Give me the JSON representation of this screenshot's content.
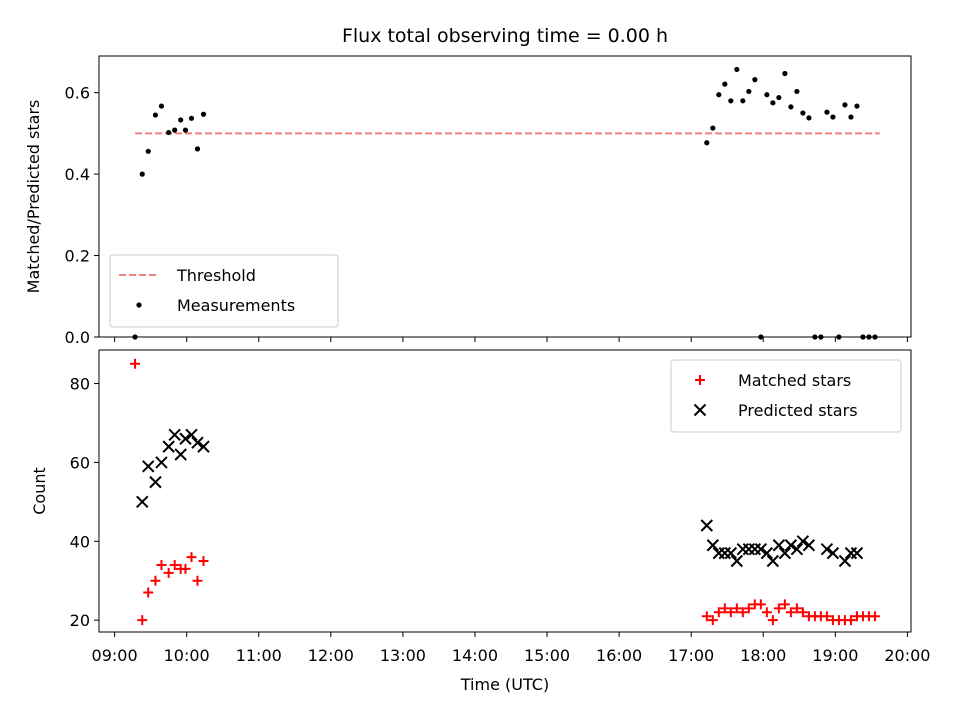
{
  "chart_data": [
    {
      "type": "scatter",
      "title": "Flux total observing time = 0.00 h",
      "xlabel": "",
      "ylabel": "Matched/Predicted stars",
      "xlim": [
        "08:47",
        "20:03"
      ],
      "ylim": [
        0,
        0.69
      ],
      "yticks": [
        0.0,
        0.2,
        0.4,
        0.6
      ],
      "ytick_labels": [
        "0.0",
        "0.2",
        "0.4",
        "0.6"
      ],
      "xtick_labels_shown": false,
      "legend_position": "lower-left",
      "threshold": {
        "name": "Threshold",
        "value": 0.5,
        "x_range": [
          "09:17",
          "19:37"
        ],
        "color": "#f08080",
        "style": "dashed"
      },
      "series": [
        {
          "name": "Measurements",
          "color": "#000000",
          "marker": "dot",
          "points": [
            [
              "09:17",
              0.0
            ],
            [
              "09:23",
              0.4
            ],
            [
              "09:28",
              0.456
            ],
            [
              "09:34",
              0.545
            ],
            [
              "09:39",
              0.567
            ],
            [
              "09:45",
              0.502
            ],
            [
              "09:50",
              0.508
            ],
            [
              "09:55",
              0.533
            ],
            [
              "09:59",
              0.508
            ],
            [
              "10:04",
              0.537
            ],
            [
              "10:09",
              0.462
            ],
            [
              "10:14",
              0.547
            ],
            [
              "17:13",
              0.477
            ],
            [
              "17:18",
              0.513
            ],
            [
              "17:23",
              0.595
            ],
            [
              "17:28",
              0.621
            ],
            [
              "17:33",
              0.58
            ],
            [
              "17:38",
              0.657
            ],
            [
              "17:43",
              0.58
            ],
            [
              "17:48",
              0.603
            ],
            [
              "17:53",
              0.632
            ],
            [
              "17:58",
              0.0
            ],
            [
              "18:03",
              0.595
            ],
            [
              "18:08",
              0.575
            ],
            [
              "18:13",
              0.588
            ],
            [
              "18:18",
              0.647
            ],
            [
              "18:23",
              0.565
            ],
            [
              "18:28",
              0.603
            ],
            [
              "18:33",
              0.55
            ],
            [
              "18:38",
              0.538
            ],
            [
              "18:43",
              0.0
            ],
            [
              "18:48",
              0.0
            ],
            [
              "18:53",
              0.552
            ],
            [
              "18:58",
              0.54
            ],
            [
              "19:03",
              0.0
            ],
            [
              "19:08",
              0.57
            ],
            [
              "19:13",
              0.54
            ],
            [
              "19:18",
              0.567
            ],
            [
              "19:23",
              0.0
            ],
            [
              "19:28",
              0.0
            ],
            [
              "19:33",
              0.0
            ]
          ]
        }
      ]
    },
    {
      "type": "scatter",
      "title": "",
      "xlabel": "Time (UTC)",
      "ylabel": "Count",
      "xlim": [
        "08:47",
        "20:03"
      ],
      "ylim": [
        17,
        88.5
      ],
      "yticks": [
        20,
        40,
        60,
        80
      ],
      "ytick_labels": [
        "20",
        "40",
        "60",
        "80"
      ],
      "xticks": [
        "09:00",
        "10:00",
        "11:00",
        "12:00",
        "13:00",
        "14:00",
        "15:00",
        "16:00",
        "17:00",
        "18:00",
        "19:00",
        "20:00"
      ],
      "xtick_labels": [
        "09:00",
        "10:00",
        "11:00",
        "12:00",
        "13:00",
        "14:00",
        "15:00",
        "16:00",
        "17:00",
        "18:00",
        "19:00",
        "20:00"
      ],
      "legend_position": "top-right",
      "series": [
        {
          "name": "Matched stars",
          "color": "#ff0000",
          "marker": "plus",
          "points": [
            [
              "09:17",
              85
            ],
            [
              "09:23",
              20
            ],
            [
              "09:28",
              27
            ],
            [
              "09:34",
              30
            ],
            [
              "09:39",
              34
            ],
            [
              "09:45",
              32
            ],
            [
              "09:50",
              34
            ],
            [
              "09:55",
              33
            ],
            [
              "09:59",
              33
            ],
            [
              "10:04",
              36
            ],
            [
              "10:09",
              30
            ],
            [
              "10:14",
              35
            ],
            [
              "17:13",
              21
            ],
            [
              "17:18",
              20
            ],
            [
              "17:23",
              22
            ],
            [
              "17:28",
              23
            ],
            [
              "17:33",
              22
            ],
            [
              "17:38",
              23
            ],
            [
              "17:43",
              22
            ],
            [
              "17:48",
              23
            ],
            [
              "17:53",
              24
            ],
            [
              "17:58",
              24
            ],
            [
              "18:03",
              22
            ],
            [
              "18:08",
              20
            ],
            [
              "18:13",
              23
            ],
            [
              "18:18",
              24
            ],
            [
              "18:23",
              22
            ],
            [
              "18:28",
              23
            ],
            [
              "18:33",
              22
            ],
            [
              "18:38",
              21
            ],
            [
              "18:43",
              21
            ],
            [
              "18:48",
              21
            ],
            [
              "18:53",
              21
            ],
            [
              "18:58",
              20
            ],
            [
              "19:03",
              20
            ],
            [
              "19:08",
              20
            ],
            [
              "19:13",
              20
            ],
            [
              "19:18",
              21
            ],
            [
              "19:23",
              21
            ],
            [
              "19:28",
              21
            ],
            [
              "19:33",
              21
            ]
          ]
        },
        {
          "name": "Predicted stars",
          "color": "#000000",
          "marker": "x",
          "points": [
            [
              "09:23",
              50
            ],
            [
              "09:28",
              59
            ],
            [
              "09:34",
              55
            ],
            [
              "09:39",
              60
            ],
            [
              "09:45",
              64
            ],
            [
              "09:50",
              67
            ],
            [
              "09:55",
              62
            ],
            [
              "09:59",
              66
            ],
            [
              "10:04",
              67
            ],
            [
              "10:09",
              65
            ],
            [
              "10:14",
              64
            ],
            [
              "17:13",
              44
            ],
            [
              "17:18",
              39
            ],
            [
              "17:23",
              37
            ],
            [
              "17:28",
              37
            ],
            [
              "17:33",
              37
            ],
            [
              "17:38",
              35
            ],
            [
              "17:43",
              38
            ],
            [
              "17:48",
              38
            ],
            [
              "17:53",
              38
            ],
            [
              "17:58",
              38
            ],
            [
              "18:03",
              37
            ],
            [
              "18:08",
              35
            ],
            [
              "18:13",
              39
            ],
            [
              "18:18",
              37
            ],
            [
              "18:23",
              39
            ],
            [
              "18:28",
              38
            ],
            [
              "18:33",
              40
            ],
            [
              "18:38",
              39
            ],
            [
              "18:53",
              38
            ],
            [
              "18:58",
              37
            ],
            [
              "19:08",
              35
            ],
            [
              "19:13",
              37
            ],
            [
              "19:18",
              37
            ]
          ]
        }
      ]
    }
  ]
}
